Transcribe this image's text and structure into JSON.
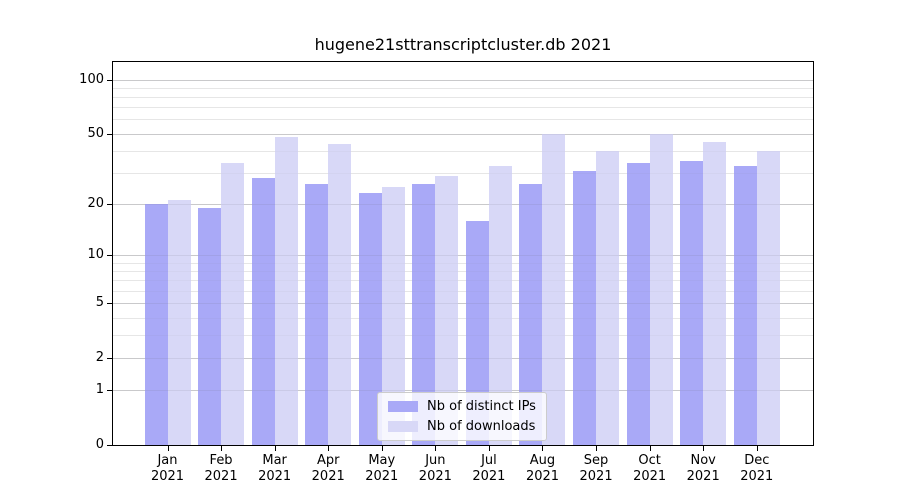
{
  "chart_data": {
    "type": "bar",
    "title": "hugene21sttranscriptcluster.db 2021",
    "categories": [
      "Jan",
      "Feb",
      "Mar",
      "Apr",
      "May",
      "Jun",
      "Jul",
      "Aug",
      "Sep",
      "Oct",
      "Nov",
      "Dec"
    ],
    "year": "2021",
    "series": [
      {
        "name": "Nb of distinct IPs",
        "color": "#a9a9f7",
        "values": [
          20,
          19,
          28,
          26,
          23,
          26,
          16,
          26,
          31,
          34,
          35,
          33
        ]
      },
      {
        "name": "Nb of downloads",
        "color": "#d8d8f7",
        "values": [
          21,
          34,
          48,
          44,
          25,
          29,
          33,
          50,
          40,
          50,
          45,
          40
        ]
      }
    ],
    "yscale": "log1p",
    "yticks": [
      0,
      1,
      2,
      5,
      10,
      20,
      50,
      100
    ],
    "yticks_minor": [
      3,
      4,
      6,
      7,
      8,
      9,
      30,
      40,
      60,
      70,
      80,
      90
    ],
    "ylim": [
      0,
      125
    ],
    "grid": true,
    "legend": {
      "location": "lower center",
      "labels": [
        "Nb of distinct IPs",
        "Nb of downloads"
      ]
    }
  }
}
